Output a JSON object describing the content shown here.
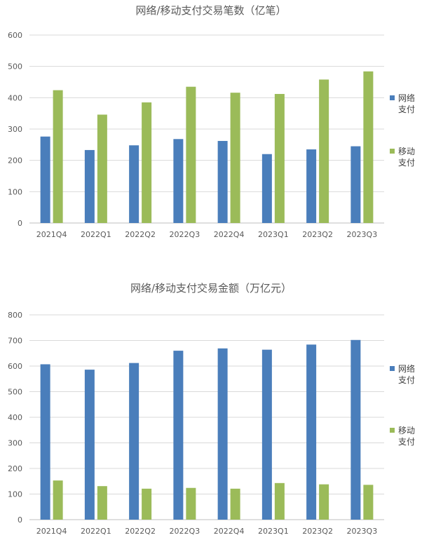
{
  "chart_data": [
    {
      "type": "bar",
      "title": "网络/移动支付交易笔数（亿笔）",
      "categories": [
        "2021Q4",
        "2022Q1",
        "2022Q2",
        "2022Q3",
        "2022Q4",
        "2023Q1",
        "2023Q2",
        "2023Q3"
      ],
      "series": [
        {
          "name": "网络支付",
          "color": "#4a7ebb",
          "values": [
            276,
            233,
            248,
            268,
            262,
            220,
            235,
            245
          ]
        },
        {
          "name": "移动支付",
          "color": "#9bbb59",
          "values": [
            424,
            346,
            385,
            435,
            416,
            412,
            458,
            484
          ]
        }
      ],
      "ylim": [
        0,
        600
      ],
      "yticks": [
        0,
        100,
        200,
        300,
        400,
        500,
        600
      ],
      "grid": true,
      "legend": "right"
    },
    {
      "type": "bar",
      "title": "网络/移动支付交易金额（万亿元）",
      "categories": [
        "2021Q4",
        "2022Q1",
        "2022Q2",
        "2022Q3",
        "2022Q4",
        "2023Q1",
        "2023Q2",
        "2023Q3"
      ],
      "series": [
        {
          "name": "网络支付",
          "color": "#4a7ebb",
          "values": [
            607,
            586,
            612,
            660,
            669,
            664,
            684,
            702
          ]
        },
        {
          "name": "移动支付",
          "color": "#9bbb59",
          "values": [
            153,
            131,
            121,
            124,
            121,
            143,
            138,
            136
          ]
        }
      ],
      "ylim": [
        0,
        800
      ],
      "yticks": [
        0,
        100,
        200,
        300,
        400,
        500,
        600,
        700,
        800
      ],
      "grid": true,
      "legend": "right"
    }
  ]
}
